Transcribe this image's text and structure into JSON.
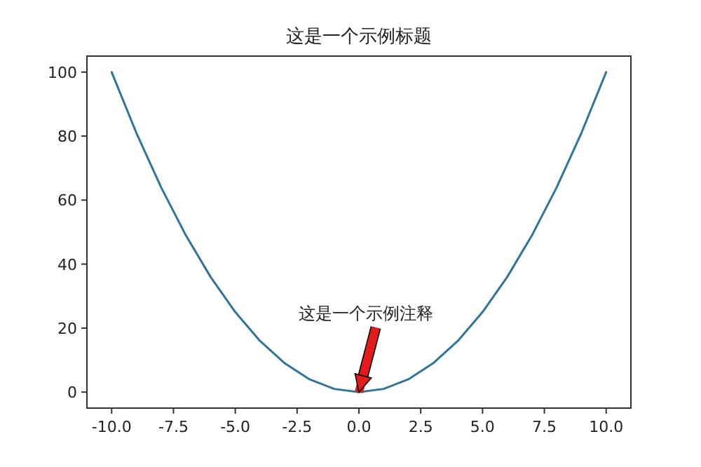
{
  "chart_data": {
    "type": "line",
    "title": "这是一个示例标题",
    "x": [
      -10,
      -9,
      -8,
      -7,
      -6,
      -5,
      -4,
      -3,
      -2,
      -1,
      0,
      1,
      2,
      3,
      4,
      5,
      6,
      7,
      8,
      9,
      10
    ],
    "series": [
      {
        "color": "#31749b",
        "values": [
          100,
          81,
          64,
          49,
          36,
          25,
          16,
          9,
          4,
          1,
          0,
          1,
          4,
          9,
          16,
          25,
          36,
          49,
          64,
          81,
          100
        ]
      }
    ],
    "annotations": [
      {
        "text": "这是一个示例注释",
        "x": 0,
        "y": 0
      }
    ],
    "xlim": [
      -11,
      11
    ],
    "ylim": [
      -5,
      105
    ],
    "xticks": [
      {
        "value": -10,
        "label": "-10.0"
      },
      {
        "value": -7.5,
        "label": "-7.5"
      },
      {
        "value": -5,
        "label": "-5.0"
      },
      {
        "value": -2.5,
        "label": "-2.5"
      },
      {
        "value": 0,
        "label": "0.0"
      },
      {
        "value": 2.5,
        "label": "2.5"
      },
      {
        "value": 5,
        "label": "5.0"
      },
      {
        "value": 7.5,
        "label": "7.5"
      },
      {
        "value": 10,
        "label": "10.0"
      }
    ],
    "yticks": [
      0,
      20,
      40,
      60,
      80,
      100
    ],
    "grid": false,
    "marker": "none",
    "line_style": "solid"
  }
}
